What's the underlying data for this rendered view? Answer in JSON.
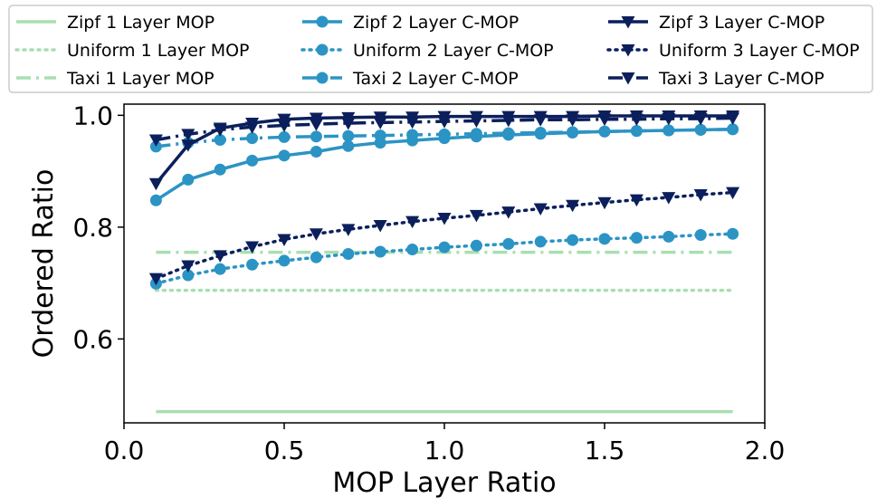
{
  "chart_data": {
    "type": "line",
    "title": "",
    "xlabel": "MOP Layer Ratio",
    "ylabel": "Ordered Ratio",
    "xlim": [
      0.0,
      2.0
    ],
    "ylim": [
      0.45,
      1.02
    ],
    "xticks": [
      0.0,
      0.5,
      1.0,
      1.5,
      2.0
    ],
    "xtick_labels": [
      "0.0",
      "0.5",
      "1.0",
      "1.5",
      "2.0"
    ],
    "yticks": [
      0.6,
      0.8,
      1.0
    ],
    "ytick_labels": [
      "0.6",
      "0.8",
      "1.0"
    ],
    "grid": false,
    "legend_placement": "top",
    "colors": {
      "one_layer": "#a8dfb0",
      "two_layer": "#2b94c4",
      "three_layer": "#0b1f5c"
    },
    "series": [
      {
        "name": "Zipf 1 Layer MOP",
        "color": "#a8dfb0",
        "style": "solid",
        "marker": "none",
        "x": [
          0.1,
          1.9
        ],
        "y": [
          0.47,
          0.47
        ]
      },
      {
        "name": "Uniform 1 Layer MOP",
        "color": "#a8dfb0",
        "style": "dotted",
        "marker": "none",
        "x": [
          0.1,
          1.9
        ],
        "y": [
          0.687,
          0.687
        ]
      },
      {
        "name": "Taxi 1 Layer MOP",
        "color": "#a8dfb0",
        "style": "dashdot",
        "marker": "none",
        "x": [
          0.1,
          1.9
        ],
        "y": [
          0.755,
          0.755
        ]
      },
      {
        "name": "Zipf 2 Layer C-MOP",
        "color": "#2b94c4",
        "style": "solid",
        "marker": "circle",
        "x": [
          0.1,
          0.2,
          0.3,
          0.4,
          0.5,
          0.6,
          0.7,
          0.8,
          0.9,
          1.0,
          1.1,
          1.2,
          1.3,
          1.4,
          1.5,
          1.6,
          1.7,
          1.8,
          1.9
        ],
        "y": [
          0.848,
          0.885,
          0.903,
          0.919,
          0.928,
          0.935,
          0.945,
          0.951,
          0.955,
          0.959,
          0.962,
          0.965,
          0.967,
          0.969,
          0.971,
          0.972,
          0.973,
          0.974,
          0.975
        ]
      },
      {
        "name": "Uniform 2 Layer C-MOP",
        "color": "#2b94c4",
        "style": "dotted",
        "marker": "circle",
        "x": [
          0.1,
          0.2,
          0.3,
          0.4,
          0.5,
          0.6,
          0.7,
          0.8,
          0.9,
          1.0,
          1.1,
          1.2,
          1.3,
          1.4,
          1.5,
          1.6,
          1.7,
          1.8,
          1.9
        ],
        "y": [
          0.699,
          0.714,
          0.725,
          0.733,
          0.74,
          0.746,
          0.752,
          0.756,
          0.76,
          0.764,
          0.767,
          0.77,
          0.774,
          0.777,
          0.779,
          0.781,
          0.783,
          0.786,
          0.788
        ]
      },
      {
        "name": "Taxi 2 Layer C-MOP",
        "color": "#2b94c4",
        "style": "dashdot",
        "marker": "circle",
        "x": [
          0.1,
          0.2,
          0.3,
          0.4,
          0.5,
          0.6,
          0.7,
          0.8,
          0.9,
          1.0,
          1.1,
          1.2,
          1.3,
          1.4,
          1.5,
          1.6,
          1.7,
          1.8,
          1.9
        ],
        "y": [
          0.944,
          0.951,
          0.956,
          0.959,
          0.961,
          0.962,
          0.963,
          0.964,
          0.965,
          0.966,
          0.967,
          0.968,
          0.969,
          0.97,
          0.971,
          0.972,
          0.973,
          0.974,
          0.975
        ]
      },
      {
        "name": "Zipf 3 Layer C-MOP",
        "color": "#0b1f5c",
        "style": "solid",
        "marker": "triangle-down",
        "x": [
          0.1,
          0.2,
          0.3,
          0.4,
          0.5,
          0.6,
          0.7,
          0.8,
          0.9,
          1.0,
          1.1,
          1.2,
          1.3,
          1.4,
          1.5,
          1.6,
          1.7,
          1.8,
          1.9
        ],
        "y": [
          0.878,
          0.947,
          0.977,
          0.986,
          0.993,
          0.995,
          0.996,
          0.997,
          0.997,
          0.998,
          0.998,
          0.998,
          0.998,
          0.998,
          0.999,
          0.999,
          0.999,
          0.999,
          0.999
        ]
      },
      {
        "name": "Uniform 3 Layer C-MOP",
        "color": "#0b1f5c",
        "style": "dotted",
        "marker": "triangle-down",
        "x": [
          0.1,
          0.2,
          0.3,
          0.4,
          0.5,
          0.6,
          0.7,
          0.8,
          0.9,
          1.0,
          1.1,
          1.2,
          1.3,
          1.4,
          1.5,
          1.6,
          1.7,
          1.8,
          1.9
        ],
        "y": [
          0.708,
          0.731,
          0.749,
          0.765,
          0.778,
          0.788,
          0.796,
          0.803,
          0.81,
          0.816,
          0.821,
          0.827,
          0.833,
          0.839,
          0.844,
          0.849,
          0.853,
          0.858,
          0.862
        ]
      },
      {
        "name": "Taxi 3 Layer C-MOP",
        "color": "#0b1f5c",
        "style": "dashdot",
        "marker": "triangle-down",
        "x": [
          0.1,
          0.2,
          0.3,
          0.4,
          0.5,
          0.6,
          0.7,
          0.8,
          0.9,
          1.0,
          1.1,
          1.2,
          1.3,
          1.4,
          1.5,
          1.6,
          1.7,
          1.8,
          1.9
        ],
        "y": [
          0.956,
          0.966,
          0.974,
          0.979,
          0.982,
          0.984,
          0.986,
          0.987,
          0.988,
          0.989,
          0.99,
          0.991,
          0.992,
          0.992,
          0.993,
          0.993,
          0.994,
          0.994,
          0.995
        ]
      }
    ]
  }
}
